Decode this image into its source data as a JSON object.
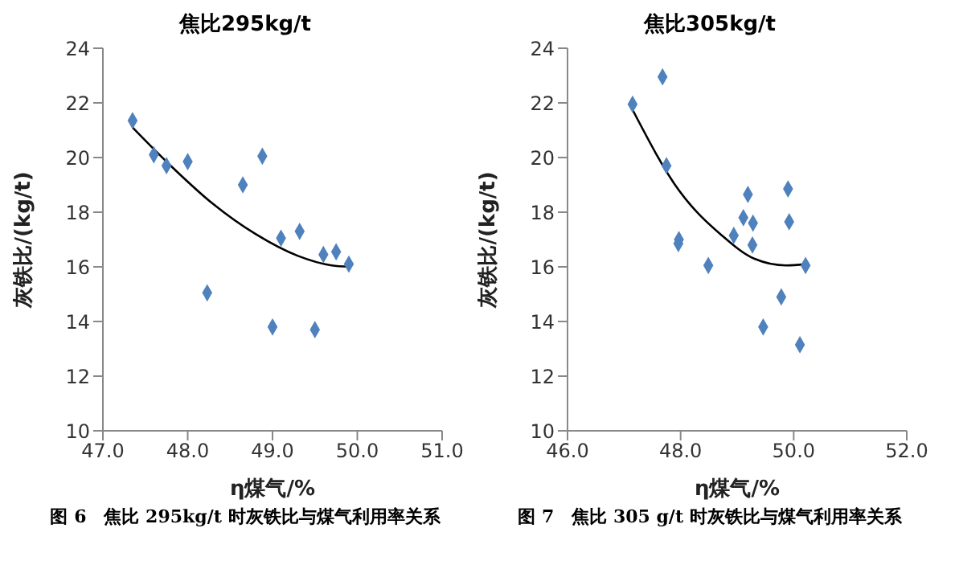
{
  "chart_data": [
    {
      "type": "scatter",
      "title": "焦比295kg/t",
      "xlabel": "η煤气/%",
      "ylabel": "灰铁比/(kg/t)",
      "annotations": [
        "图 6　焦比 295kg/t 时灰铁比与煤气利用率关系"
      ],
      "marker": "diamond",
      "grid": false,
      "legend": false,
      "xlim": [
        47,
        51
      ],
      "xticks": [
        {
          "value": 47,
          "label": "47.0"
        },
        {
          "value": 48,
          "label": "48.0"
        },
        {
          "value": 49,
          "label": "49.0"
        },
        {
          "value": 50,
          "label": "50.0"
        },
        {
          "value": 51,
          "label": "51.0"
        }
      ],
      "ylim": [
        10,
        24
      ],
      "yticks": [
        10,
        12,
        14,
        16,
        18,
        20,
        22,
        24
      ],
      "series": [
        {
          "color": "#4f81bd",
          "x": [
            47.35,
            47.6,
            47.75,
            48.0,
            48.23,
            48.65,
            48.88,
            49.0,
            49.1,
            49.32,
            49.5,
            49.6,
            49.75,
            49.9
          ],
          "values": [
            21.35,
            20.1,
            19.7,
            19.85,
            15.05,
            19.0,
            20.05,
            13.8,
            17.05,
            17.3,
            13.7,
            16.45,
            16.55,
            16.1
          ]
        },
        {
          "type": "line",
          "color": "#000000",
          "marker": "none",
          "x": [
            47.35,
            47.8,
            48.3,
            48.8,
            49.3,
            49.7,
            49.9
          ],
          "values": [
            21.1,
            19.7,
            18.3,
            17.2,
            16.4,
            16.05,
            16.0
          ]
        }
      ]
    },
    {
      "type": "scatter",
      "title": "焦比305kg/t",
      "xlabel": "η煤气/%",
      "ylabel": "灰铁比/(kg/t)",
      "annotations": [
        "图 7　焦比 305 g/t 时灰铁比与煤气利用率关系"
      ],
      "marker": "diamond",
      "grid": false,
      "legend": false,
      "xlim": [
        46,
        52
      ],
      "xticks": [
        {
          "value": 46,
          "label": "46.0"
        },
        {
          "value": 48,
          "label": "48.0"
        },
        {
          "value": 50,
          "label": "50.0"
        },
        {
          "value": 52,
          "label": "52.0"
        }
      ],
      "ylim": [
        10,
        24
      ],
      "yticks": [
        10,
        12,
        14,
        16,
        18,
        20,
        22,
        24
      ],
      "series": [
        {
          "color": "#4f81bd",
          "x": [
            47.15,
            47.68,
            47.75,
            47.97,
            47.96,
            48.49,
            48.94,
            49.11,
            49.19,
            49.28,
            49.27,
            49.46,
            49.78,
            49.9,
            49.92,
            50.11,
            50.21
          ],
          "values": [
            21.95,
            22.95,
            19.7,
            17.0,
            16.85,
            16.05,
            17.15,
            17.8,
            18.65,
            17.6,
            16.8,
            13.8,
            14.9,
            18.85,
            17.65,
            13.15,
            16.05
          ]
        },
        {
          "type": "line",
          "color": "#000000",
          "marker": "none",
          "x": [
            47.15,
            47.97,
            48.73,
            49.3,
            49.87,
            50.21
          ],
          "values": [
            21.75,
            18.8,
            17.15,
            16.3,
            16.05,
            16.1
          ]
        }
      ]
    }
  ]
}
